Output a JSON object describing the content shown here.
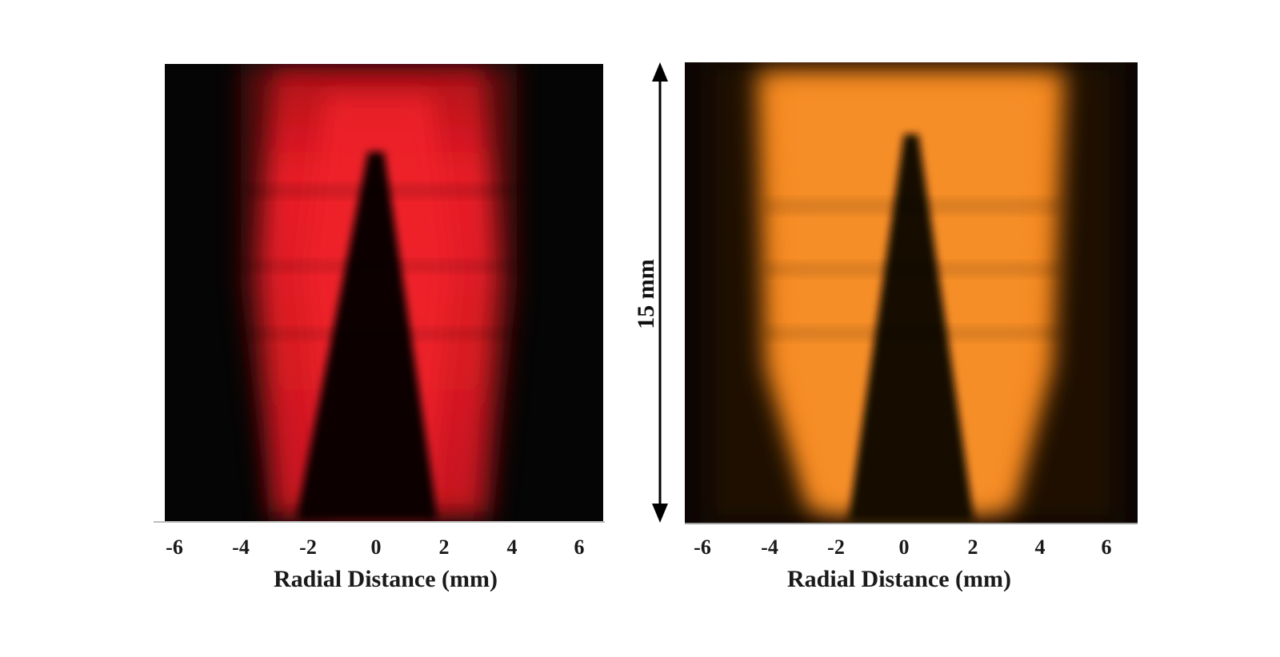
{
  "figure": {
    "left_panel": {
      "color": "#ff1f2a",
      "ticks": [
        "-6",
        "-4",
        "-2",
        "0",
        "2",
        "4",
        "6"
      ],
      "axis_title": "Radial Distance (mm)"
    },
    "right_panel": {
      "color": "#ff8a1c",
      "ticks": [
        "-6",
        "-4",
        "-2",
        "0",
        "2",
        "4",
        "6"
      ],
      "axis_title": "Radial Distance (mm)"
    },
    "scale_bar": {
      "label": "15 mm"
    }
  }
}
